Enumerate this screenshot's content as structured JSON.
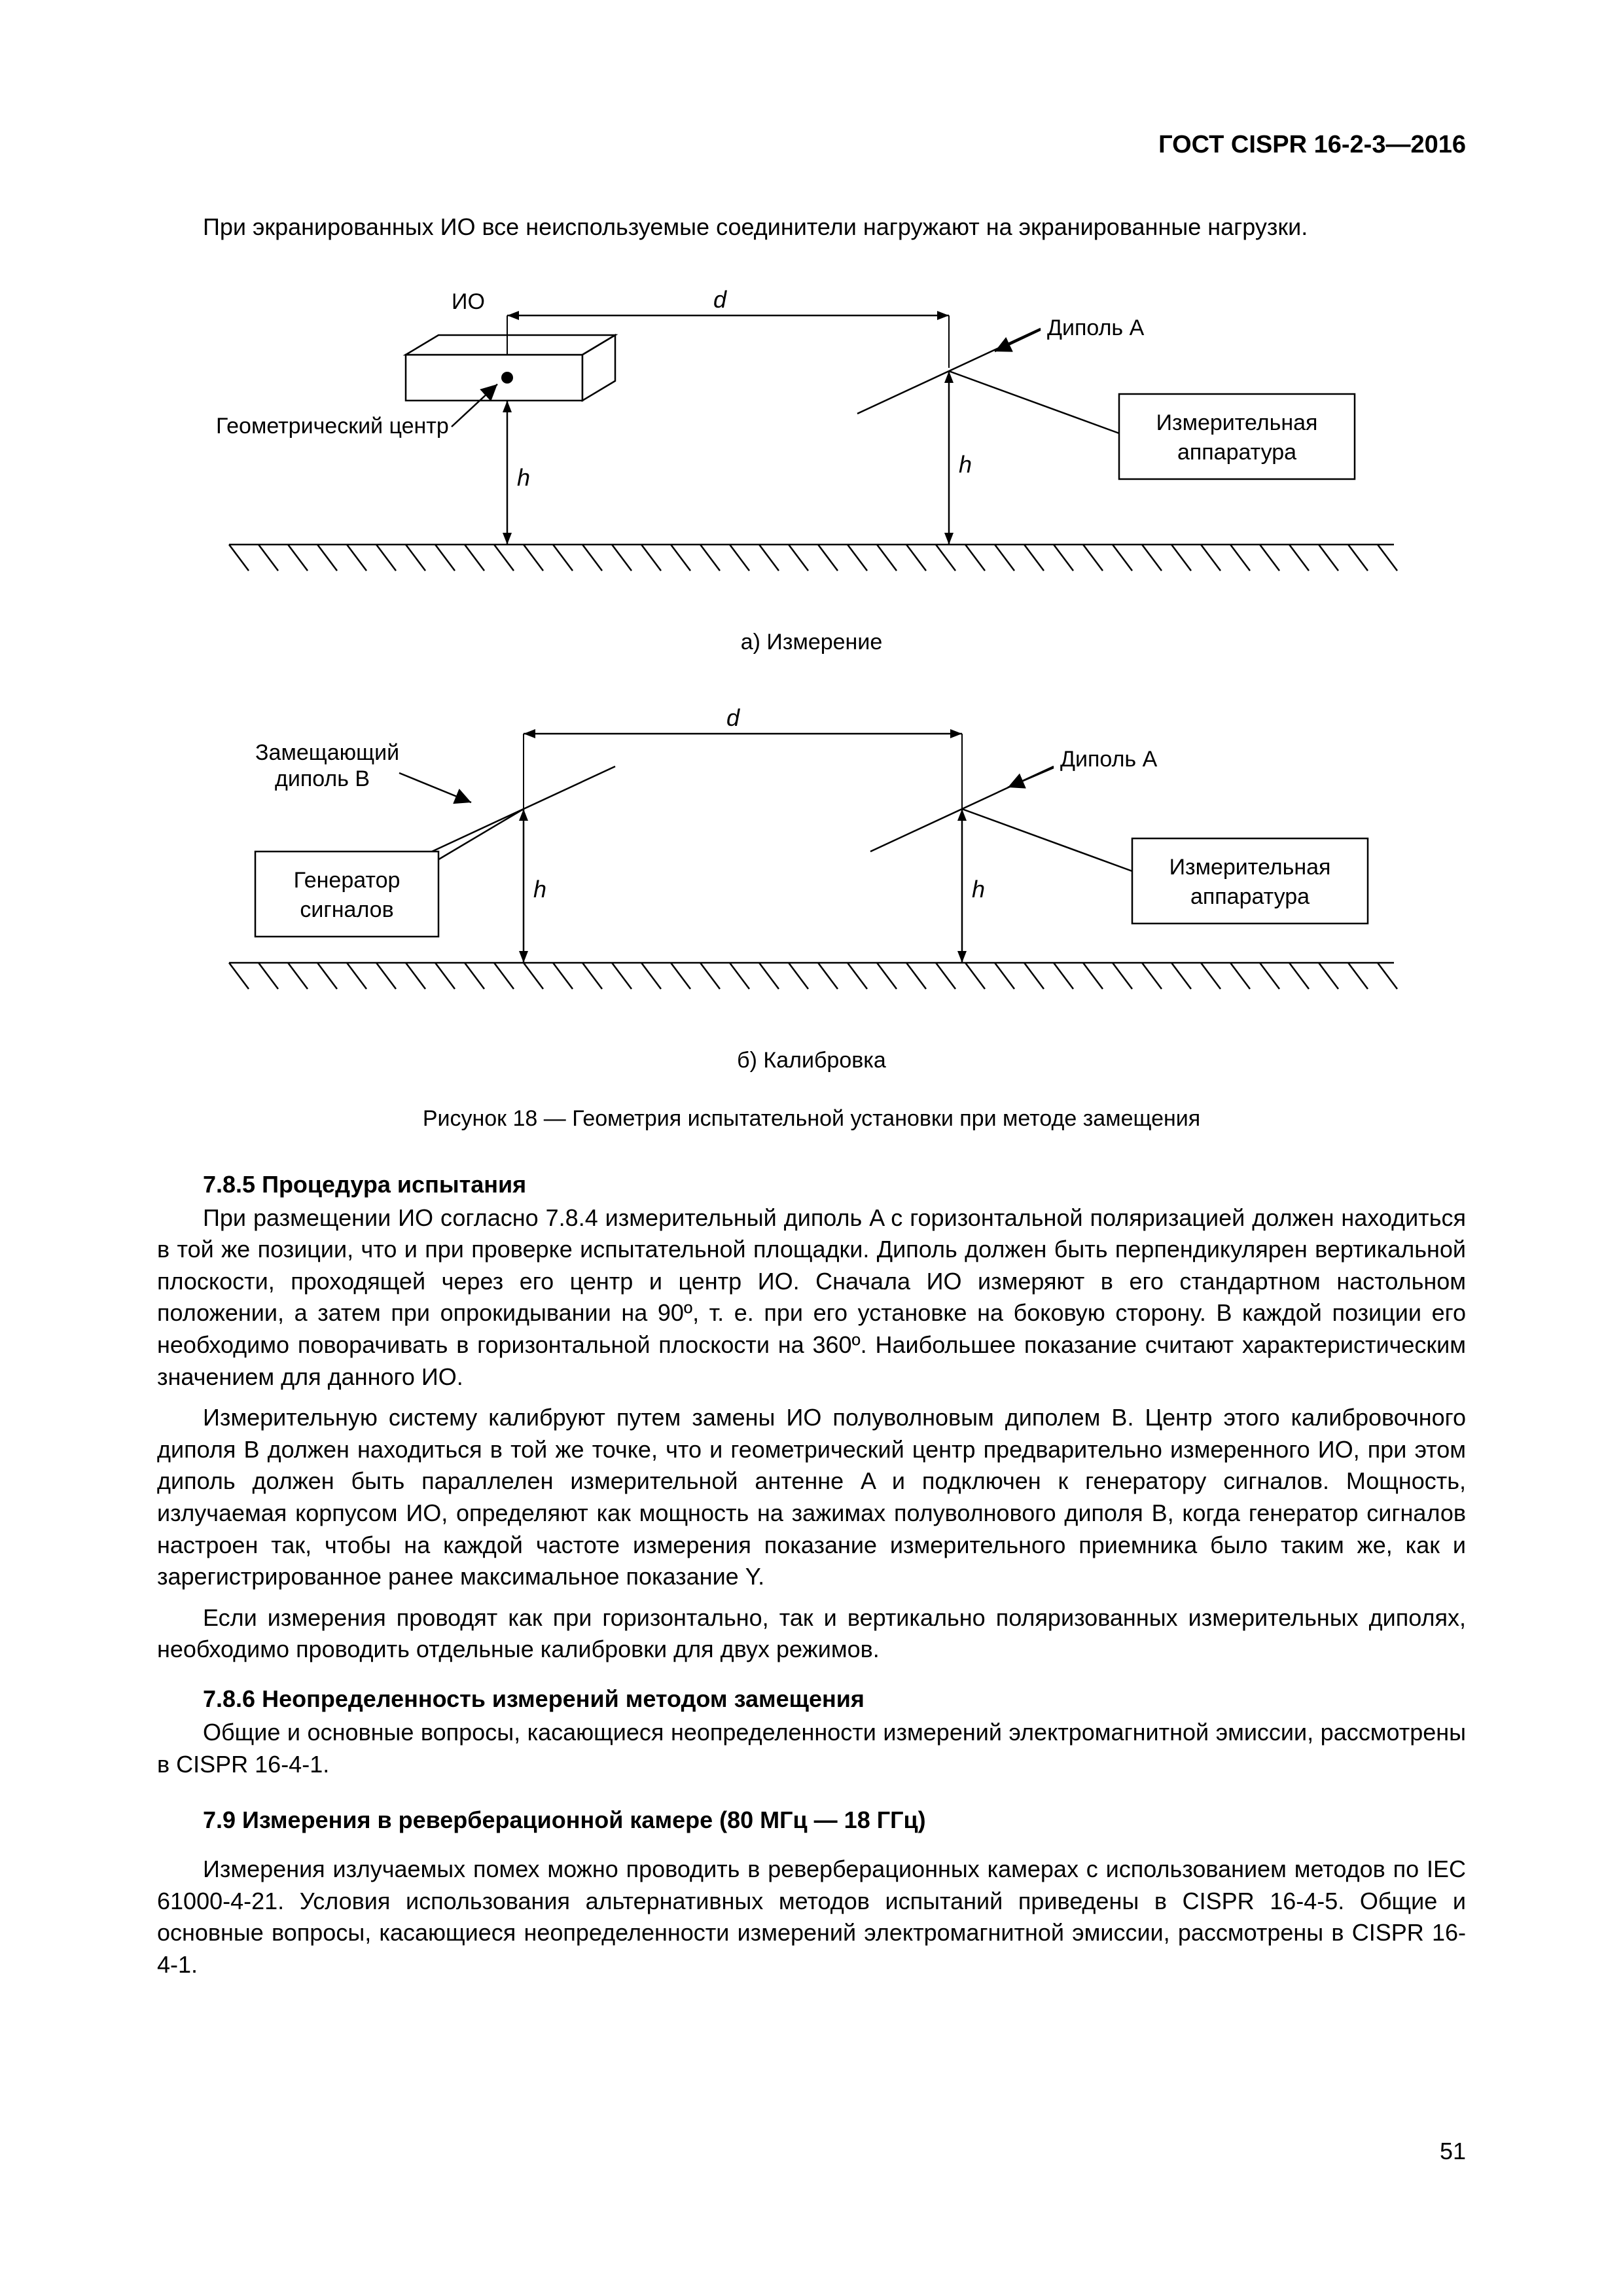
{
  "header": "ГОСТ CISPR 16-2-3—2016",
  "intro": "При экранированных ИО все неиспользуемые соединители нагружают на экранированные нагрузки.",
  "figA": {
    "labels": {
      "io": "ИО",
      "d": "d",
      "dipoleA": "Диполь A",
      "geomCenter": "Геометрический центр",
      "h1": "h",
      "h2": "h",
      "measApp": "Измерительная",
      "measApp2": "аппаратура"
    },
    "caption": "a) Измерение"
  },
  "figB": {
    "labels": {
      "subDipoleB1": "Замещающий",
      "subDipoleB2": "диполь B",
      "d": "d",
      "dipoleA": "Диполь A",
      "sigGen1": "Генератор",
      "sigGen2": "сигналов",
      "h1": "h",
      "h2": "h",
      "measApp": "Измерительная",
      "measApp2": "аппаратура"
    },
    "caption": "б) Калибровка"
  },
  "figTitle": "Рисунок 18 — Геометрия испытательной установки при методе замещения",
  "s785_title": "7.8.5  Процедура испытания",
  "s785_p1": "При размещении ИО согласно 7.8.4 измерительный диполь A с горизонтальной поляризацией должен находиться в той же позиции, что и при проверке испытательной площадки. Диполь должен быть перпендикулярен вертикальной плоскости, проходящей через его центр и центр ИО. Сначала ИО измеряют в его стандартном настольном положении, а затем при опрокидывании на 90º, т. е. при его установке на боковую сторону. В каждой позиции его необходимо поворачивать в горизонтальной пло­скости на 360º. Наибольшее показание считают характеристическим значением для данного ИО.",
  "s785_p2": "Измерительную систему калибруют путем замены ИО полуволновым диполем B. Центр этого ка­либровочного диполя B должен находиться в той же точке, что и геометрический центр предварительно измеренного ИО, при этом диполь должен быть параллелен измерительной антенне A и подключен к генератору сигналов. Мощность, излучаемая корпусом ИО, определяют как мощность на зажимах полуволнового диполя B, когда генератор сигналов настроен так, чтобы на каждой частоте измерения показание измерительного приемника было таким же, как и зарегистрированное ранее максимальное показание Y.",
  "s785_p3": "Если измерения проводят как при горизонтально, так и вертикально поляризованных измеритель­ных диполях, необходимо проводить отдельные калибровки для двух режимов.",
  "s786_title": "7.8.6  Неопределенность измерений методом замещения",
  "s786_p1": "Общие и основные вопросы, касающиеся неопределенности измерений электромагнитной эмис­сии, рассмотрены в CISPR 16-4-1.",
  "s79_title": "7.9  Измерения в реверберационной камере (80 МГц — 18 ГГц)",
  "s79_p1": "Измерения излучаемых помех можно проводить в реверберационных камерах с использованием методов по IEC 61000-4-21. Условия использования альтернативных методов испытаний приведены в CISPR 16-4-5. Общие и основные вопросы, касающиеся неопределенности измерений электромагнит­ной эмиссии, рассмотрены в CISPR 16-4-1.",
  "pagenum": "51",
  "style": {
    "stroke": "#000000",
    "strokeWidth": 2.5,
    "fontSize": 34,
    "fontSizeItalic": 36
  }
}
